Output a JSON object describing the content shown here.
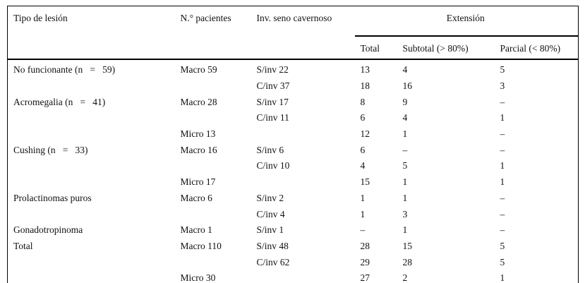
{
  "table": {
    "headers": {
      "tipo": "Tipo de lesión",
      "pacientes": "N.° pacientes",
      "inv": "Inv. seno cavernoso",
      "extension": "Extensión",
      "total": "Total",
      "subtotal": "Subtotal (> 80%)",
      "parcial": "Parcial (< 80%)"
    },
    "rows": [
      [
        "No funcionante (n   =   59)",
        "Macro 59",
        "S/inv 22",
        "13",
        "4",
        "5"
      ],
      [
        "",
        "",
        "C/inv 37",
        "18",
        "16",
        "3"
      ],
      [
        "Acromegalia (n   =   41)",
        "Macro 28",
        "S/inv 17",
        "8",
        "9",
        "–"
      ],
      [
        "",
        "",
        "C/inv 11",
        "6",
        "4",
        "1"
      ],
      [
        "",
        "Micro 13",
        "",
        "12",
        "1",
        "–"
      ],
      [
        "Cushing (n   =   33)",
        "Macro 16",
        "S/inv 6",
        "6",
        "–",
        "–"
      ],
      [
        "",
        "",
        "C/inv 10",
        "4",
        "5",
        "1"
      ],
      [
        "",
        "Micro 17",
        "",
        "15",
        "1",
        "1"
      ],
      [
        "Prolactinomas puros",
        "Macro 6",
        "S/inv 2",
        "1",
        "1",
        "–"
      ],
      [
        "",
        "",
        "C/inv 4",
        "1",
        "3",
        "–"
      ],
      [
        "Gonadotropinoma",
        "Macro 1",
        "S/inv 1",
        "–",
        "1",
        "–"
      ],
      [
        "Total",
        "Macro 110",
        "S/inv 48",
        "28",
        "15",
        "5"
      ],
      [
        "",
        "",
        "C/inv 62",
        "29",
        "28",
        "5"
      ],
      [
        "",
        "Micro 30",
        "",
        "27",
        "2",
        "1"
      ]
    ]
  }
}
